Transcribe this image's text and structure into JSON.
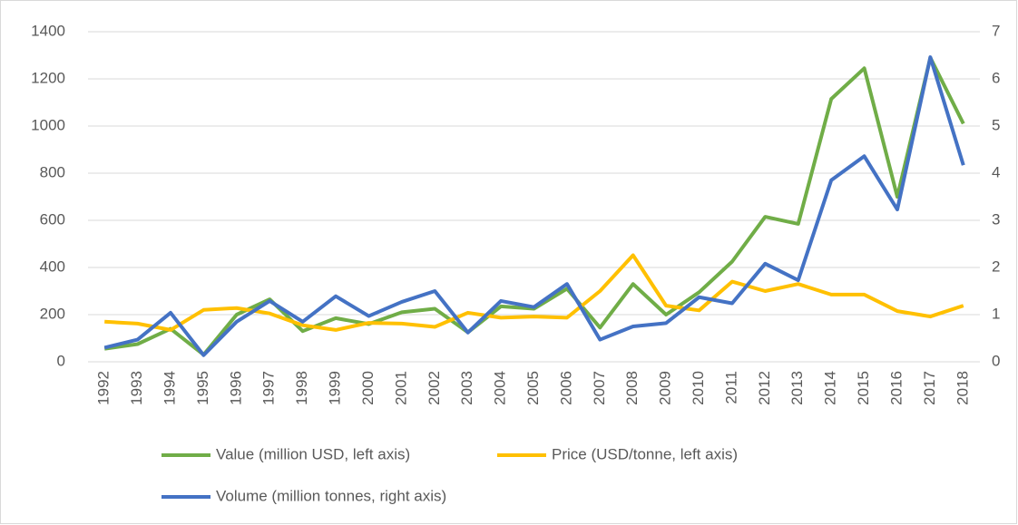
{
  "chart_data": {
    "type": "line",
    "categories": [
      "1992",
      "1993",
      "1994",
      "1995",
      "1996",
      "1997",
      "1998",
      "1999",
      "2000",
      "2001",
      "2002",
      "2003",
      "2004",
      "2005",
      "2006",
      "2007",
      "2008",
      "2009",
      "2010",
      "2011",
      "2012",
      "2013",
      "2014",
      "2015",
      "2016",
      "2017",
      "2018"
    ],
    "series": [
      {
        "name": "Value (million USD, left axis)",
        "color": "#70ad47",
        "values": [
          55,
          75,
          140,
          30,
          200,
          265,
          130,
          185,
          160,
          210,
          225,
          125,
          235,
          225,
          310,
          145,
          330,
          200,
          295,
          425,
          615,
          585,
          1115,
          1245,
          700,
          1290,
          1010
        ]
      },
      {
        "name": "Price (USD/tonne, left axis)",
        "color": "#ffc000",
        "values": [
          170,
          162,
          135,
          220,
          228,
          205,
          155,
          135,
          165,
          162,
          148,
          208,
          187,
          192,
          187,
          300,
          452,
          238,
          218,
          340,
          300,
          330,
          285,
          285,
          215,
          192,
          238
        ]
      },
      {
        "name": "Volume (million tonnes, right axis)",
        "color": "#4472c4",
        "axis": "y2",
        "values": [
          0.3,
          0.47,
          1.04,
          0.14,
          0.85,
          1.29,
          0.85,
          1.39,
          0.97,
          1.27,
          1.5,
          0.62,
          1.29,
          1.16,
          1.65,
          0.47,
          0.75,
          0.82,
          1.37,
          1.24,
          2.08,
          1.73,
          3.85,
          4.36,
          3.23,
          6.46,
          4.17
        ]
      }
    ],
    "ylim": [
      0,
      1400
    ],
    "yticks": [
      0,
      200,
      400,
      600,
      800,
      1000,
      1200,
      1400
    ],
    "y2lim": [
      0,
      7
    ],
    "y2ticks": [
      0,
      1,
      2,
      3,
      4,
      5,
      6,
      7
    ],
    "grid": true
  }
}
